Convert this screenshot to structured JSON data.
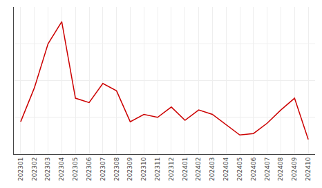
{
  "chart_data": {
    "type": "line",
    "categories": [
      "202301",
      "202302",
      "202303",
      "202304",
      "202305",
      "202306",
      "202307",
      "202308",
      "202309",
      "202310",
      "202311",
      "202312",
      "202401",
      "202402",
      "202403",
      "202404",
      "202405",
      "202406",
      "202407",
      "202408",
      "202409",
      "202410"
    ],
    "values": [
      2.2,
      4.5,
      7.5,
      9.0,
      3.8,
      3.5,
      4.8,
      4.3,
      2.2,
      2.7,
      2.5,
      3.2,
      2.3,
      3.0,
      2.7,
      2.0,
      1.3,
      1.4,
      2.1,
      3.0,
      3.8,
      1.0
    ],
    "color": "#cc0000",
    "ylim": [
      0,
      10.0
    ],
    "yticks": [
      0,
      2.5,
      5,
      7.5,
      10
    ],
    "grid": true,
    "tick_labels": "x"
  }
}
